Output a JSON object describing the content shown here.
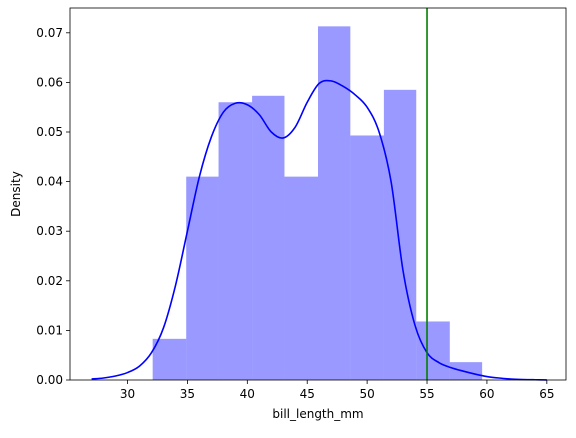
{
  "chart_data": {
    "type": "histogram",
    "xlabel": "bill_length_mm",
    "ylabel": "Density",
    "xlim": [
      25.2,
      66.6
    ],
    "ylim": [
      0,
      0.075
    ],
    "xticks": [
      30,
      35,
      40,
      45,
      50,
      55,
      60,
      65
    ],
    "yticks": [
      0.0,
      0.01,
      0.02,
      0.03,
      0.04,
      0.05,
      0.06,
      0.07
    ],
    "ytick_labels": [
      "0.00",
      "0.01",
      "0.02",
      "0.03",
      "0.04",
      "0.05",
      "0.06",
      "0.07"
    ],
    "bins": [
      {
        "x0": 32.1,
        "x1": 34.9,
        "density": 0.0083
      },
      {
        "x0": 34.9,
        "x1": 37.6,
        "density": 0.041
      },
      {
        "x0": 37.6,
        "x1": 40.4,
        "density": 0.056
      },
      {
        "x0": 40.4,
        "x1": 43.1,
        "density": 0.0573
      },
      {
        "x0": 43.1,
        "x1": 45.9,
        "density": 0.041
      },
      {
        "x0": 45.9,
        "x1": 48.6,
        "density": 0.0713
      },
      {
        "x0": 48.6,
        "x1": 51.4,
        "density": 0.0493
      },
      {
        "x0": 51.4,
        "x1": 54.1,
        "density": 0.0585
      },
      {
        "x0": 54.1,
        "x1": 56.9,
        "density": 0.0118
      },
      {
        "x0": 56.9,
        "x1": 59.6,
        "density": 0.0036
      },
      {
        "x0": 59.6,
        "x1": 59.6,
        "density": 0.0
      }
    ],
    "kde": {
      "x": [
        27,
        28,
        29,
        30,
        31,
        32,
        33,
        34,
        35,
        36,
        37,
        38,
        39,
        40,
        41,
        42,
        43,
        44,
        45,
        46,
        47,
        48,
        49,
        50,
        51,
        52,
        53,
        54,
        55,
        56,
        57,
        58,
        59,
        60,
        61,
        62,
        63,
        64,
        65
      ],
      "y": [
        0.0002,
        0.0004,
        0.0008,
        0.0015,
        0.0028,
        0.0055,
        0.0105,
        0.019,
        0.03,
        0.041,
        0.049,
        0.054,
        0.0558,
        0.0555,
        0.0535,
        0.05,
        0.0488,
        0.051,
        0.056,
        0.0598,
        0.0603,
        0.0592,
        0.0575,
        0.055,
        0.05,
        0.04,
        0.022,
        0.011,
        0.0055,
        0.0035,
        0.0025,
        0.0018,
        0.0012,
        0.0007,
        0.0004,
        0.0002,
        0.0001,
        5e-05,
        2e-05
      ]
    },
    "vline": {
      "x": 55.0
    },
    "colors": {
      "bars": "#0000ff",
      "bar_opacity": 0.4,
      "kde": "#0000ff",
      "vline": "#008000"
    }
  }
}
